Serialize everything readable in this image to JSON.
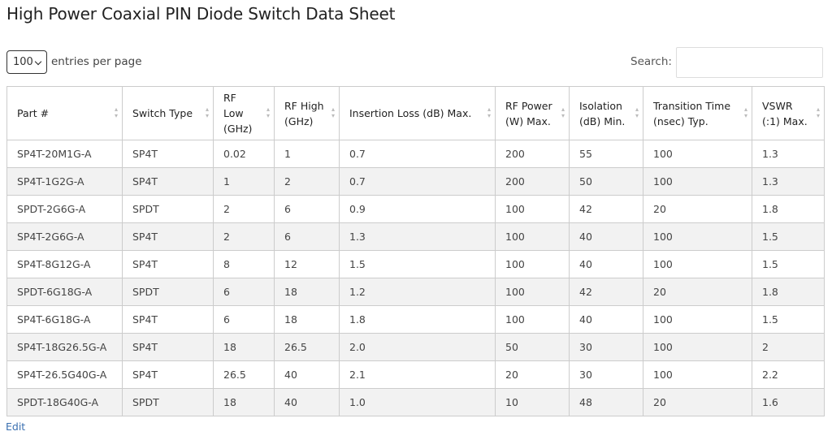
{
  "header": {
    "title": "High Power Coaxial PIN Diode Switch Data Sheet"
  },
  "controls": {
    "page_size": "100",
    "page_size_label": "entries per page",
    "search_label": "Search:"
  },
  "table": {
    "columns": [
      [
        "Part #"
      ],
      [
        "Switch Type"
      ],
      [
        "RF Low",
        "(GHz)"
      ],
      [
        "RF High",
        "(GHz)"
      ],
      [
        "Insertion Loss (dB) Max."
      ],
      [
        "RF Power",
        "(W) Max."
      ],
      [
        "Isolation",
        "(dB) Min."
      ],
      [
        "Transition Time",
        "(nsec) Typ."
      ],
      [
        "VSWR",
        "(:1) Max."
      ]
    ],
    "rows": [
      [
        "SP4T-20M1G-A",
        "SP4T",
        "0.02",
        "1",
        "0.7",
        "200",
        "55",
        "100",
        "1.3"
      ],
      [
        "SP4T-1G2G-A",
        "SP4T",
        "1",
        "2",
        "0.7",
        "200",
        "50",
        "100",
        "1.3"
      ],
      [
        "SPDT-2G6G-A",
        "SPDT",
        "2",
        "6",
        "0.9",
        "100",
        "42",
        "20",
        "1.8"
      ],
      [
        "SP4T-2G6G-A",
        "SP4T",
        "2",
        "6",
        "1.3",
        "100",
        "40",
        "100",
        "1.5"
      ],
      [
        "SP4T-8G12G-A",
        "SP4T",
        "8",
        "12",
        "1.5",
        "100",
        "40",
        "100",
        "1.5"
      ],
      [
        "SPDT-6G18G-A",
        "SPDT",
        "6",
        "18",
        "1.2",
        "100",
        "42",
        "20",
        "1.8"
      ],
      [
        "SP4T-6G18G-A",
        "SP4T",
        "6",
        "18",
        "1.8",
        "100",
        "40",
        "100",
        "1.5"
      ],
      [
        "SP4T-18G26.5G-A",
        "SP4T",
        "18",
        "26.5",
        "2.0",
        "50",
        "30",
        "100",
        "2"
      ],
      [
        "SP4T-26.5G40G-A",
        "SP4T",
        "26.5",
        "40",
        "2.1",
        "20",
        "30",
        "100",
        "2.2"
      ],
      [
        "SPDT-18G40G-A",
        "SPDT",
        "18",
        "40",
        "1.0",
        "10",
        "48",
        "20",
        "1.6"
      ]
    ]
  },
  "footer": {
    "edit": "Edit"
  }
}
